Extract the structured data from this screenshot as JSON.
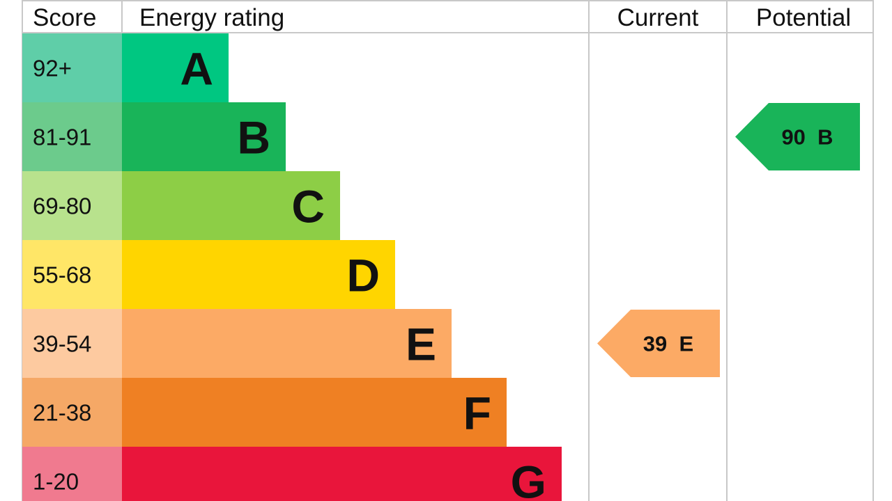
{
  "chart_data": {
    "type": "table",
    "headers": {
      "score": "Score",
      "rating": "Energy rating",
      "current": "Current",
      "potential": "Potential"
    },
    "bands": [
      {
        "letter": "A",
        "range": "92+",
        "color": "#00c781",
        "score_color": "#5fcea8"
      },
      {
        "letter": "B",
        "range": "81-91",
        "color": "#19b459",
        "score_color": "#6ccb8c"
      },
      {
        "letter": "C",
        "range": "69-80",
        "color": "#8dce46",
        "score_color": "#b8e28d"
      },
      {
        "letter": "D",
        "range": "55-68",
        "color": "#ffd500",
        "score_color": "#ffe667"
      },
      {
        "letter": "E",
        "range": "39-54",
        "color": "#fcaa65",
        "score_color": "#fdcaa0"
      },
      {
        "letter": "F",
        "range": "21-38",
        "color": "#ef8023",
        "score_color": "#f5a866"
      },
      {
        "letter": "G",
        "range": "1-20",
        "color": "#e9153b",
        "score_color": "#f07a8f"
      }
    ],
    "current": {
      "score": 39,
      "band": "E",
      "label": "39  E",
      "color": "#fcaa65"
    },
    "potential": {
      "score": 90,
      "band": "B",
      "label": "90  B",
      "color": "#19b459"
    }
  }
}
